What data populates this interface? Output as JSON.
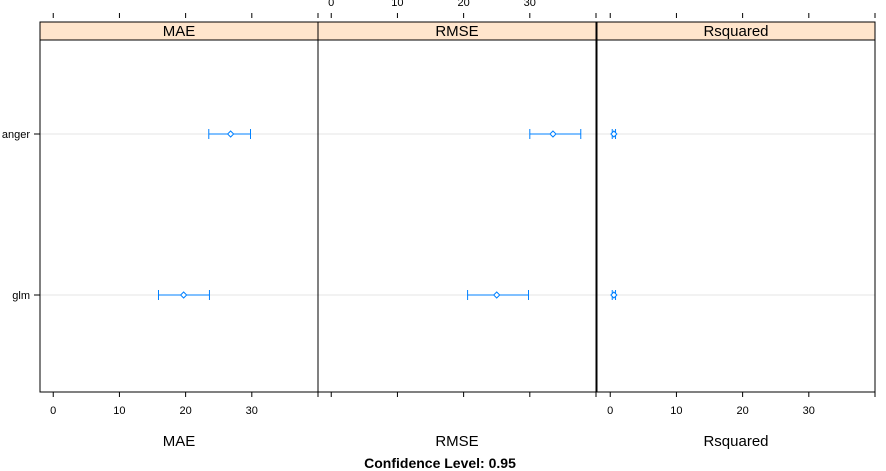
{
  "chart_data": {
    "type": "dotplot",
    "title": "",
    "footer": "Confidence Level: 0.95",
    "models": [
      "glm",
      "anger"
    ],
    "panels": [
      {
        "name": "MAE",
        "xlabel": "MAE",
        "xlim": [
          -2,
          40
        ],
        "ticks": [
          0,
          10,
          20,
          30
        ],
        "estimates": [
          {
            "model": "anger",
            "lower": 23.5,
            "estimate": 26.8,
            "upper": 29.8
          },
          {
            "model": "glm",
            "lower": 15.9,
            "estimate": 19.7,
            "upper": 23.6
          }
        ]
      },
      {
        "name": "RMSE",
        "xlabel": "RMSE",
        "xlim": [
          -2,
          40
        ],
        "ticks": [
          0,
          10,
          20,
          30
        ],
        "estimates": [
          {
            "model": "anger",
            "lower": 30.0,
            "estimate": 33.5,
            "upper": 37.7
          },
          {
            "model": "glm",
            "lower": 20.6,
            "estimate": 25.0,
            "upper": 29.8
          }
        ]
      },
      {
        "name": "Rsquared",
        "xlabel": "Rsquared",
        "xlim": [
          -2,
          40
        ],
        "ticks": [
          0,
          10,
          20,
          30
        ],
        "estimates": [
          {
            "model": "anger",
            "lower": 0.3,
            "estimate": 0.55,
            "upper": 0.8
          },
          {
            "model": "glm",
            "lower": 0.3,
            "estimate": 0.55,
            "upper": 0.8
          }
        ]
      }
    ],
    "colors": {
      "strip": "#ffe5cc",
      "series": "#0080ff",
      "refline": "#e6e6e6",
      "frame": "#000000"
    }
  }
}
